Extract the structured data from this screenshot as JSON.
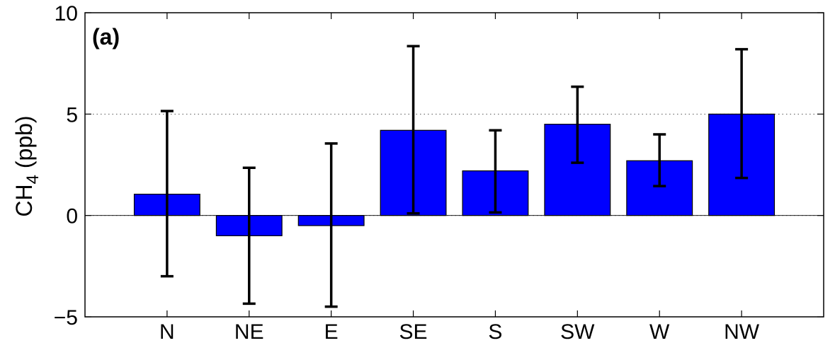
{
  "chart_data": {
    "type": "bar",
    "panel_label": "(a)",
    "ylabel_main": "CH",
    "ylabel_sub": "4",
    "ylabel_unit": " (ppb)",
    "categories": [
      "N",
      "NE",
      "E",
      "SE",
      "S",
      "SW",
      "W",
      "NW"
    ],
    "values": [
      1.05,
      -1.0,
      -0.5,
      4.2,
      2.2,
      4.5,
      2.7,
      5.0
    ],
    "error_low": [
      -3.0,
      -4.35,
      -4.5,
      0.1,
      0.15,
      2.6,
      1.45,
      1.85
    ],
    "error_high": [
      5.15,
      2.35,
      3.55,
      8.35,
      4.2,
      6.35,
      4.0,
      8.2
    ],
    "ylim": [
      -5,
      10
    ],
    "yticks": [
      "10",
      "5",
      "0",
      "−5"
    ],
    "ytick_values": [
      10,
      5,
      0,
      -5
    ],
    "grid_lines": [
      5,
      0
    ],
    "grid": "dotted horizontal at y=5 and y=0",
    "bar_color": "#0000ff",
    "legend": "none"
  }
}
